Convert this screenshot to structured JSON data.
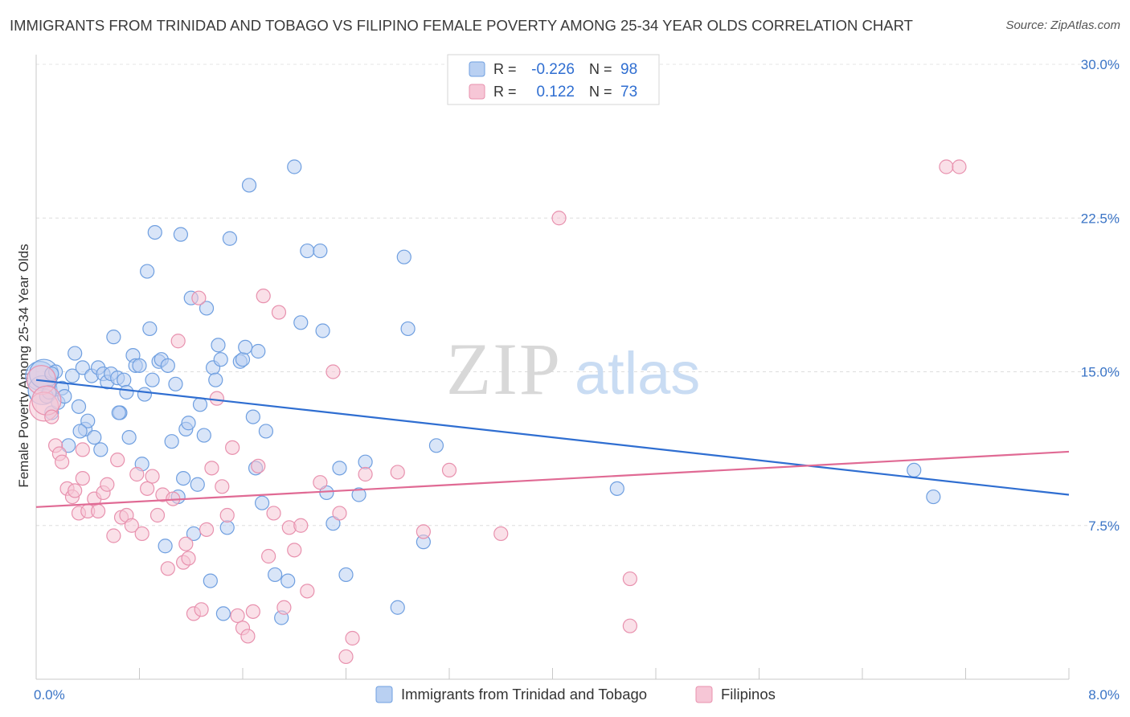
{
  "title": "IMMIGRANTS FROM TRINIDAD AND TOBAGO VS FILIPINO FEMALE POVERTY AMONG 25-34 YEAR OLDS CORRELATION CHART",
  "source": "Source: ZipAtlas.com",
  "watermark": {
    "zip": "ZIP",
    "atlas": "atlas"
  },
  "chart_data": {
    "type": "scatter",
    "ylabel": "Female Poverty Among 25-34 Year Olds",
    "xlim": [
      0,
      8
    ],
    "ylim": [
      0,
      30
    ],
    "x_tick_labels": {
      "min": "0.0%",
      "max": "8.0%"
    },
    "y_ticks": [
      7.5,
      15.0,
      22.5,
      30.0
    ],
    "y_tick_labels": [
      "7.5%",
      "15.0%",
      "22.5%",
      "30.0%"
    ],
    "grid": "horizontal dashed",
    "legend_position": "top-center",
    "stats": [
      {
        "r_label": "R =",
        "r": "-0.226",
        "n_label": "N =",
        "n": "98"
      },
      {
        "r_label": "R =",
        "r": "0.122",
        "n_label": "N =",
        "n": "73"
      }
    ],
    "series": [
      {
        "name": "Immigrants from Trinidad and Tobago",
        "color": "#6f9fe0",
        "fill": "#b9d0f2",
        "line_color": "#2f6ed1",
        "trend": [
          [
            0,
            14.6
          ],
          [
            8,
            9.0
          ]
        ],
        "points": [
          [
            0.03,
            14.8
          ],
          [
            0.05,
            14.1
          ],
          [
            0.06,
            14.9
          ],
          [
            0.08,
            13.8
          ],
          [
            0.1,
            14.0
          ],
          [
            0.12,
            13.0
          ],
          [
            0.15,
            15.0
          ],
          [
            0.17,
            13.5
          ],
          [
            0.2,
            14.2
          ],
          [
            0.25,
            11.4
          ],
          [
            0.28,
            14.8
          ],
          [
            0.3,
            15.9
          ],
          [
            0.33,
            13.3
          ],
          [
            0.36,
            15.2
          ],
          [
            0.38,
            12.2
          ],
          [
            0.4,
            12.6
          ],
          [
            0.43,
            14.8
          ],
          [
            0.45,
            11.8
          ],
          [
            0.48,
            15.2
          ],
          [
            0.5,
            11.2
          ],
          [
            0.52,
            14.9
          ],
          [
            0.55,
            14.5
          ],
          [
            0.58,
            14.9
          ],
          [
            0.6,
            16.7
          ],
          [
            0.63,
            14.7
          ],
          [
            0.65,
            13.0
          ],
          [
            0.68,
            14.6
          ],
          [
            0.7,
            14.0
          ],
          [
            0.72,
            11.8
          ],
          [
            0.75,
            15.8
          ],
          [
            0.77,
            15.3
          ],
          [
            0.8,
            15.3
          ],
          [
            0.82,
            10.5
          ],
          [
            0.84,
            13.9
          ],
          [
            0.86,
            19.9
          ],
          [
            0.88,
            17.1
          ],
          [
            0.9,
            14.6
          ],
          [
            0.92,
            21.8
          ],
          [
            0.95,
            15.5
          ],
          [
            0.97,
            15.6
          ],
          [
            1.0,
            6.5
          ],
          [
            1.02,
            15.3
          ],
          [
            1.05,
            11.6
          ],
          [
            1.08,
            14.4
          ],
          [
            1.1,
            8.9
          ],
          [
            1.12,
            21.7
          ],
          [
            1.14,
            9.8
          ],
          [
            1.16,
            12.2
          ],
          [
            1.18,
            12.5
          ],
          [
            1.2,
            18.6
          ],
          [
            1.22,
            7.1
          ],
          [
            1.25,
            9.5
          ],
          [
            1.27,
            13.4
          ],
          [
            1.3,
            11.9
          ],
          [
            1.32,
            18.1
          ],
          [
            1.35,
            4.8
          ],
          [
            1.37,
            15.2
          ],
          [
            1.39,
            14.6
          ],
          [
            1.41,
            16.3
          ],
          [
            1.43,
            15.6
          ],
          [
            1.45,
            3.2
          ],
          [
            1.48,
            7.4
          ],
          [
            1.5,
            21.5
          ],
          [
            1.58,
            15.5
          ],
          [
            1.6,
            15.6
          ],
          [
            1.62,
            16.2
          ],
          [
            1.65,
            24.1
          ],
          [
            1.68,
            12.8
          ],
          [
            1.7,
            10.3
          ],
          [
            1.72,
            16.0
          ],
          [
            1.75,
            8.6
          ],
          [
            1.78,
            12.1
          ],
          [
            1.85,
            5.1
          ],
          [
            1.9,
            3.0
          ],
          [
            1.95,
            4.8
          ],
          [
            2.0,
            25.0
          ],
          [
            2.05,
            17.4
          ],
          [
            2.1,
            20.9
          ],
          [
            2.2,
            20.9
          ],
          [
            2.22,
            17.0
          ],
          [
            2.25,
            9.1
          ],
          [
            2.3,
            7.6
          ],
          [
            2.35,
            10.3
          ],
          [
            2.4,
            5.1
          ],
          [
            2.5,
            9.0
          ],
          [
            2.55,
            10.6
          ],
          [
            2.8,
            3.5
          ],
          [
            2.85,
            20.6
          ],
          [
            2.88,
            17.1
          ],
          [
            3.0,
            6.7
          ],
          [
            3.1,
            11.4
          ],
          [
            4.5,
            9.3
          ],
          [
            6.8,
            10.2
          ],
          [
            6.95,
            8.9
          ],
          [
            0.12,
            14.9
          ],
          [
            0.22,
            13.8
          ],
          [
            0.34,
            12.1
          ],
          [
            0.64,
            13.0
          ]
        ]
      },
      {
        "name": "Filipinos",
        "color": "#e891ae",
        "fill": "#f6c6d6",
        "line_color": "#e06a94",
        "trend": [
          [
            0,
            8.4
          ],
          [
            8,
            11.1
          ]
        ],
        "points": [
          [
            0.04,
            14.6
          ],
          [
            0.06,
            13.3
          ],
          [
            0.08,
            13.6
          ],
          [
            0.12,
            12.8
          ],
          [
            0.15,
            11.4
          ],
          [
            0.18,
            11.0
          ],
          [
            0.2,
            10.6
          ],
          [
            0.24,
            9.3
          ],
          [
            0.28,
            8.9
          ],
          [
            0.3,
            9.2
          ],
          [
            0.33,
            8.1
          ],
          [
            0.36,
            9.8
          ],
          [
            0.4,
            8.2
          ],
          [
            0.45,
            8.8
          ],
          [
            0.48,
            8.2
          ],
          [
            0.52,
            9.1
          ],
          [
            0.55,
            9.5
          ],
          [
            0.6,
            7.0
          ],
          [
            0.63,
            10.7
          ],
          [
            0.66,
            7.9
          ],
          [
            0.7,
            8.0
          ],
          [
            0.74,
            7.5
          ],
          [
            0.78,
            10.0
          ],
          [
            0.82,
            7.1
          ],
          [
            0.86,
            9.3
          ],
          [
            0.9,
            9.9
          ],
          [
            0.94,
            8.0
          ],
          [
            0.98,
            9.0
          ],
          [
            1.02,
            5.4
          ],
          [
            1.06,
            8.8
          ],
          [
            1.1,
            16.5
          ],
          [
            1.14,
            5.7
          ],
          [
            1.16,
            6.6
          ],
          [
            1.18,
            5.9
          ],
          [
            1.22,
            3.2
          ],
          [
            1.26,
            18.6
          ],
          [
            1.28,
            3.4
          ],
          [
            1.32,
            7.3
          ],
          [
            1.36,
            10.3
          ],
          [
            1.4,
            13.7
          ],
          [
            1.44,
            9.4
          ],
          [
            1.48,
            8.0
          ],
          [
            1.52,
            11.3
          ],
          [
            1.56,
            3.1
          ],
          [
            1.6,
            2.5
          ],
          [
            1.64,
            2.1
          ],
          [
            1.68,
            3.3
          ],
          [
            1.72,
            10.4
          ],
          [
            1.76,
            18.7
          ],
          [
            1.8,
            6.0
          ],
          [
            1.84,
            8.1
          ],
          [
            1.88,
            17.9
          ],
          [
            1.92,
            3.5
          ],
          [
            1.96,
            7.4
          ],
          [
            2.0,
            6.3
          ],
          [
            2.05,
            7.5
          ],
          [
            2.1,
            4.3
          ],
          [
            2.2,
            9.6
          ],
          [
            2.3,
            15.0
          ],
          [
            2.35,
            8.1
          ],
          [
            2.4,
            1.1
          ],
          [
            2.45,
            2.0
          ],
          [
            2.55,
            10.0
          ],
          [
            2.8,
            10.1
          ],
          [
            3.0,
            7.2
          ],
          [
            3.2,
            10.2
          ],
          [
            3.6,
            7.1
          ],
          [
            4.05,
            22.5
          ],
          [
            4.6,
            4.9
          ],
          [
            4.6,
            2.6
          ],
          [
            7.05,
            25.0
          ],
          [
            7.15,
            25.0
          ],
          [
            0.36,
            11.2
          ]
        ]
      }
    ]
  }
}
